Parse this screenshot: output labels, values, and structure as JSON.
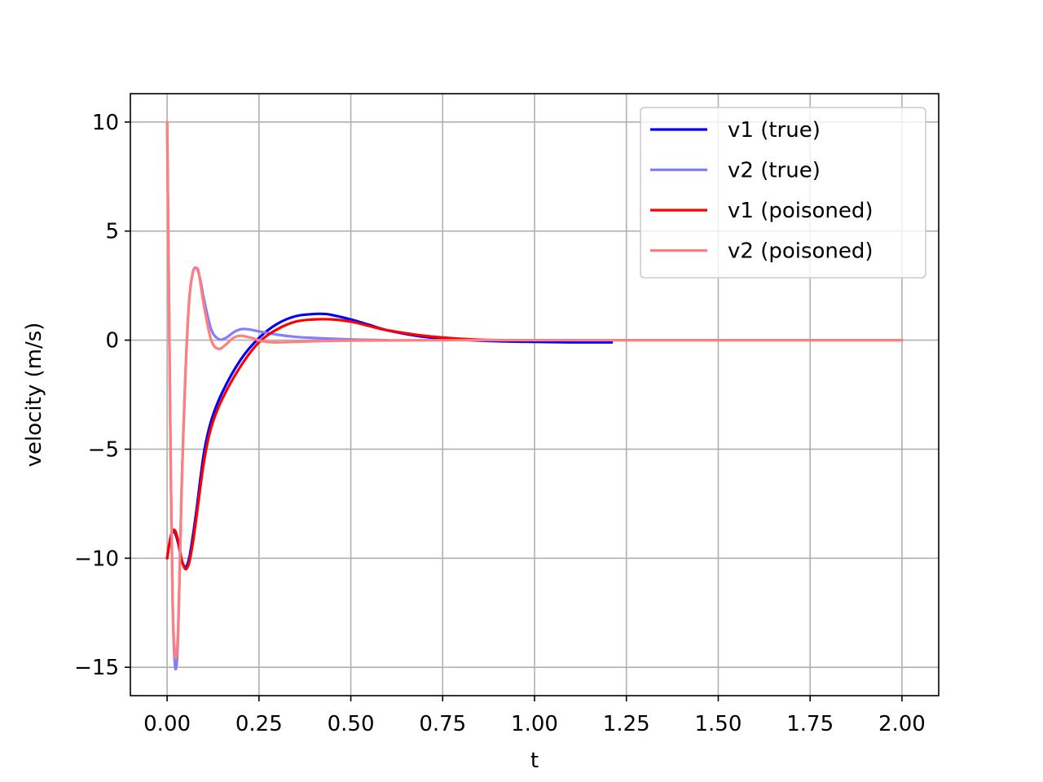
{
  "chart_data": {
    "type": "line",
    "title": "",
    "xlabel": "t",
    "ylabel": "velocity (m/s)",
    "xlim": [
      -0.1,
      2.1
    ],
    "ylim": [
      -16.3,
      11.3
    ],
    "xticks": [
      0.0,
      0.25,
      0.5,
      0.75,
      1.0,
      1.25,
      1.5,
      1.75,
      2.0
    ],
    "xtick_labels": [
      "0.00",
      "0.25",
      "0.50",
      "0.75",
      "1.00",
      "1.25",
      "1.50",
      "1.75",
      "2.00"
    ],
    "yticks": [
      10,
      5,
      0,
      -5,
      -10,
      -15
    ],
    "ytick_labels": [
      "10",
      "5",
      "0",
      "−5",
      "−10",
      "−15"
    ],
    "grid": true,
    "legend_position": "top-right",
    "series": [
      {
        "name": "v1 (true)",
        "color": "#0000ff",
        "x": [
          0,
          0.01,
          0.02,
          0.03,
          0.04,
          0.05,
          0.06,
          0.07,
          0.08,
          0.1,
          0.12,
          0.15,
          0.2,
          0.25,
          0.3,
          0.35,
          0.4,
          0.43,
          0.45,
          0.5,
          0.55,
          0.6,
          0.7,
          0.8,
          0.9,
          1.0,
          1.1,
          1.21
        ],
        "y": [
          -10.0,
          -9.0,
          -8.8,
          -9.3,
          -10.1,
          -10.4,
          -10.0,
          -9.0,
          -7.8,
          -5.2,
          -3.7,
          -2.4,
          -0.9,
          0.1,
          0.75,
          1.1,
          1.2,
          1.2,
          1.15,
          0.95,
          0.7,
          0.45,
          0.15,
          0.02,
          -0.05,
          -0.08,
          -0.1,
          -0.1
        ]
      },
      {
        "name": "v2 (true)",
        "color": "#7f7fff",
        "x": [
          0,
          0.005,
          0.01,
          0.015,
          0.02,
          0.025,
          0.03,
          0.035,
          0.04,
          0.05,
          0.06,
          0.07,
          0.08,
          0.09,
          0.1,
          0.12,
          0.14,
          0.16,
          0.18,
          0.2,
          0.22,
          0.25,
          0.3,
          0.35,
          0.4,
          0.5,
          0.6
        ],
        "y": [
          10.0,
          2.0,
          -6.0,
          -12.0,
          -14.6,
          -15.0,
          -13.5,
          -10.0,
          -6.5,
          -1.5,
          1.8,
          3.1,
          3.3,
          2.8,
          1.9,
          0.5,
          0.05,
          0.1,
          0.35,
          0.5,
          0.5,
          0.4,
          0.25,
          0.15,
          0.1,
          0.03,
          0.0
        ]
      },
      {
        "name": "v1 (poisoned)",
        "color": "#ff0000",
        "x": [
          0,
          0.01,
          0.02,
          0.03,
          0.04,
          0.05,
          0.06,
          0.07,
          0.08,
          0.1,
          0.12,
          0.15,
          0.2,
          0.25,
          0.3,
          0.35,
          0.4,
          0.45,
          0.5,
          0.55,
          0.6,
          0.7,
          0.8,
          0.9,
          1.0,
          1.5,
          2.0
        ],
        "y": [
          -10.0,
          -9.0,
          -8.7,
          -9.2,
          -10.1,
          -10.5,
          -10.2,
          -9.3,
          -8.1,
          -5.6,
          -4.0,
          -2.7,
          -1.2,
          -0.1,
          0.5,
          0.85,
          0.95,
          0.95,
          0.85,
          0.65,
          0.45,
          0.2,
          0.06,
          0.0,
          0.0,
          0.0,
          0.0
        ]
      },
      {
        "name": "v2 (poisoned)",
        "color": "#ff7f7f",
        "x": [
          0,
          0.005,
          0.01,
          0.015,
          0.02,
          0.025,
          0.03,
          0.035,
          0.04,
          0.05,
          0.06,
          0.07,
          0.08,
          0.085,
          0.09,
          0.1,
          0.12,
          0.14,
          0.16,
          0.18,
          0.2,
          0.23,
          0.26,
          0.3,
          0.4,
          0.5,
          0.8,
          1.0,
          1.5,
          2.0
        ],
        "y": [
          10.0,
          2.0,
          -6.0,
          -12.0,
          -14.2,
          -14.5,
          -13.2,
          -10.0,
          -6.5,
          -1.5,
          1.8,
          3.1,
          3.3,
          3.2,
          2.7,
          1.6,
          0.0,
          -0.4,
          -0.2,
          0.1,
          0.2,
          0.1,
          -0.05,
          -0.1,
          -0.05,
          -0.02,
          0.0,
          0.0,
          0.0,
          0.0
        ]
      }
    ]
  }
}
